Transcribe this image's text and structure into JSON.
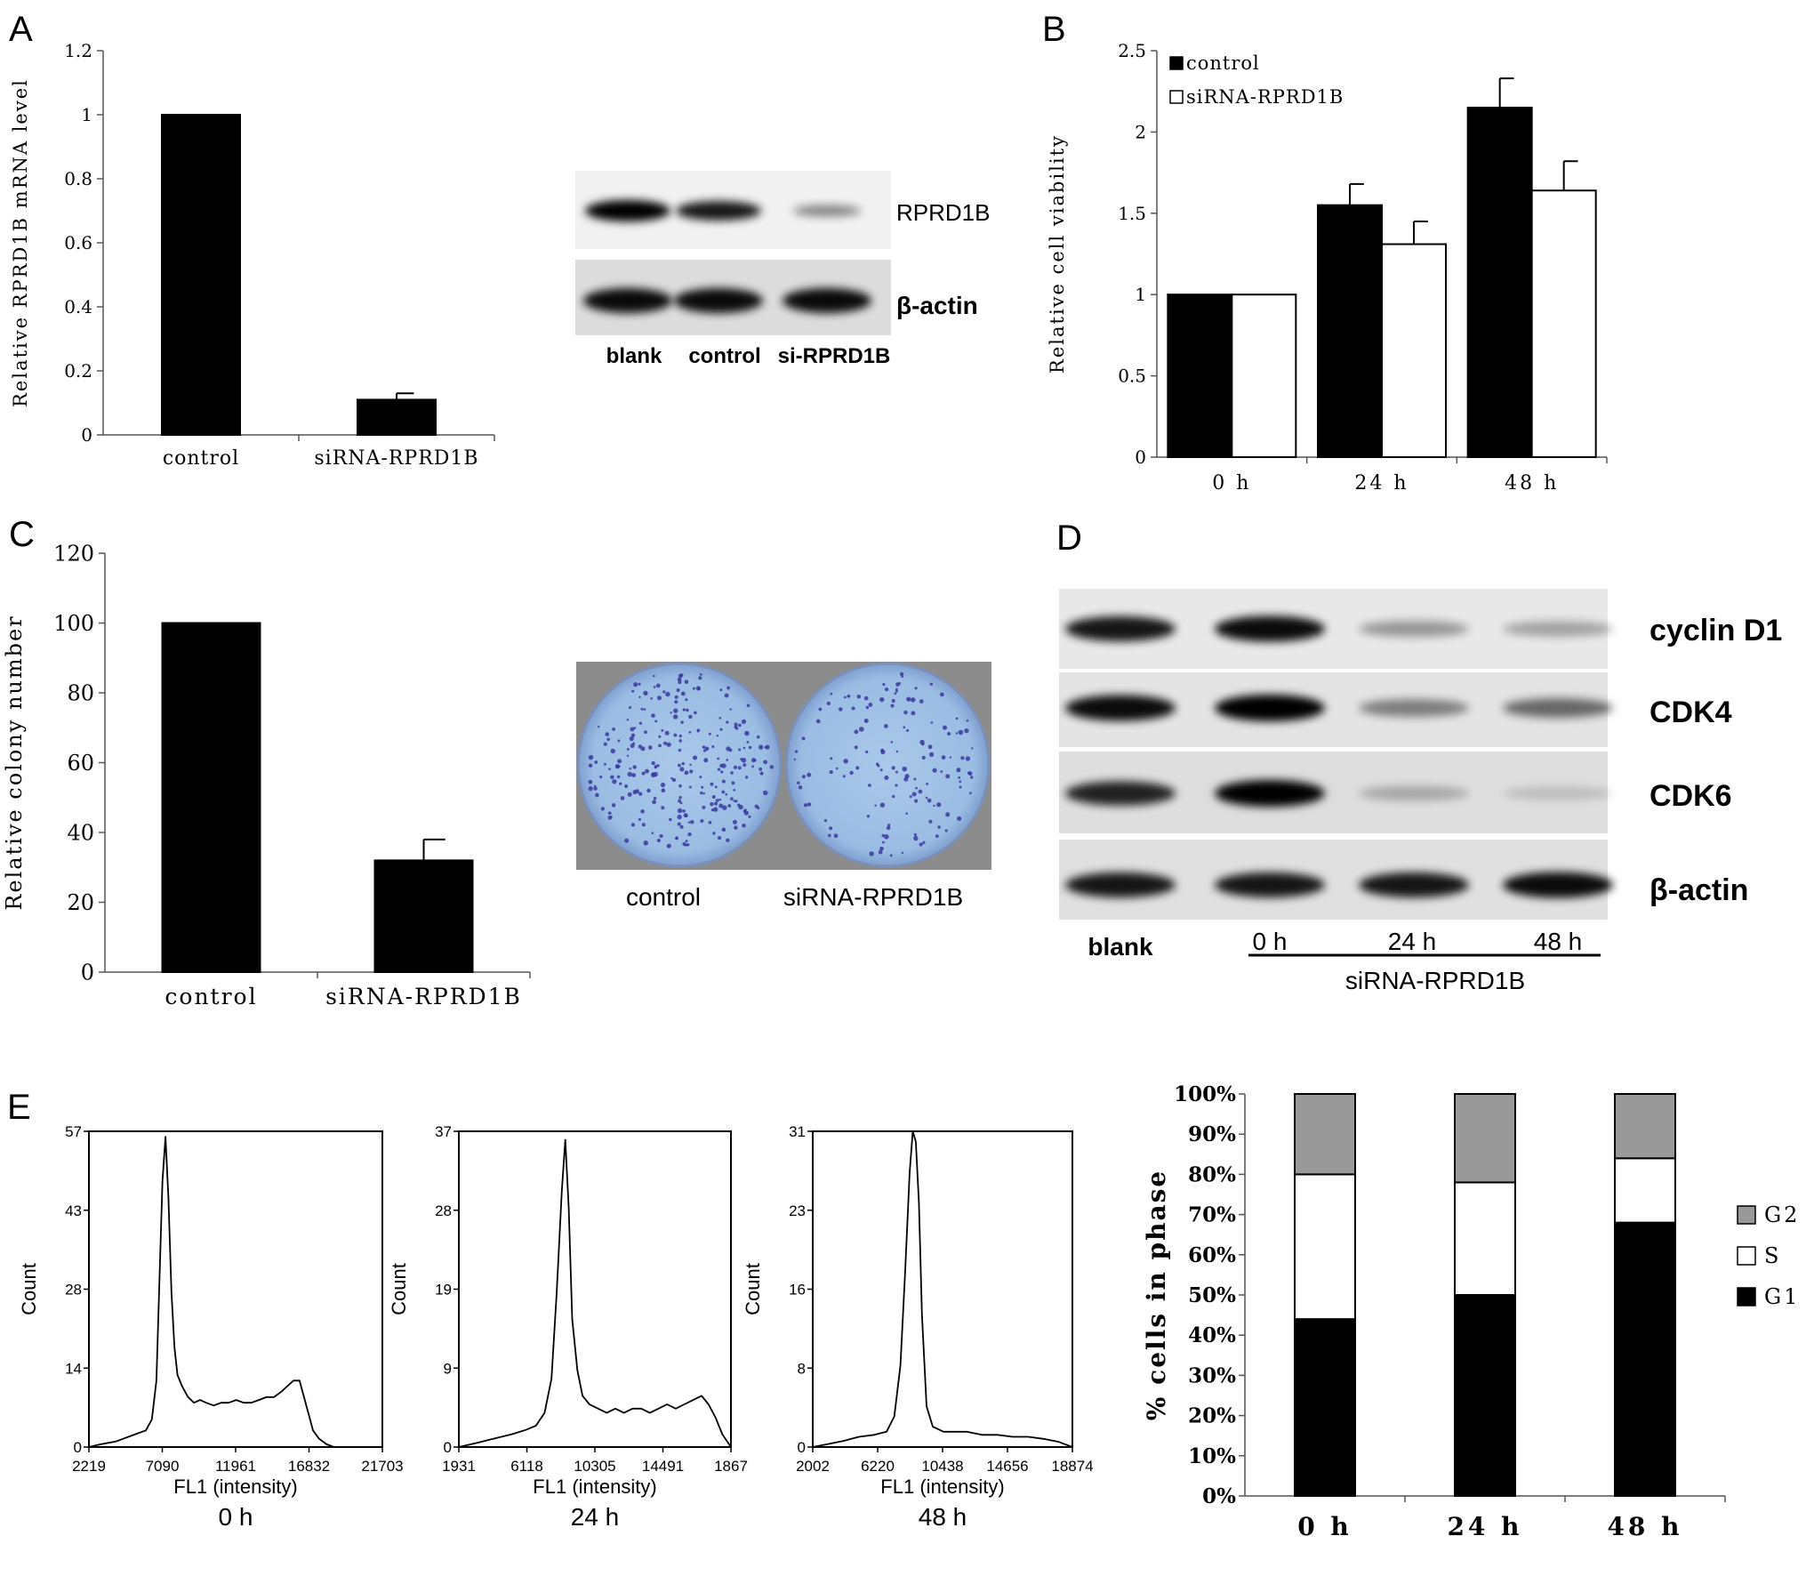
{
  "panel_letters": {
    "a": "A",
    "b": "B",
    "c": "C",
    "d": "D",
    "e": "E"
  },
  "panel_a": {
    "blot_labels": {
      "target": "RPRD1B",
      "loading": "β-actin"
    },
    "blot_lanes": [
      "blank",
      "control",
      "si-RPRD1B"
    ]
  },
  "panel_c": {
    "dish_labels": [
      "control",
      "siRNA-RPRD1B"
    ]
  },
  "panel_d": {
    "proteins": [
      "cyclin D1",
      "CDK4",
      "CDK6",
      "β-actin"
    ],
    "lanes": [
      "blank",
      "0 h",
      "24 h",
      "48 h"
    ],
    "group_label": "siRNA-RPRD1B",
    "intensities": [
      [
        0.9,
        0.95,
        0.35,
        0.3
      ],
      [
        0.95,
        1.0,
        0.45,
        0.55
      ],
      [
        0.85,
        1.0,
        0.25,
        0.15
      ],
      [
        0.9,
        0.9,
        0.9,
        0.95
      ]
    ]
  },
  "chart_data": [
    {
      "id": "A",
      "type": "bar",
      "categories": [
        "control",
        "siRNA-RPRD1B"
      ],
      "values": [
        1.0,
        0.11
      ],
      "errors": [
        0,
        0.02
      ],
      "ylabel": "Relative RPRD1B mRNA level",
      "ylim": [
        0,
        1.2
      ],
      "yticks": [
        "0",
        "0.2",
        "0.4",
        "0.6",
        "0.8",
        "1",
        "1.2"
      ]
    },
    {
      "id": "B",
      "type": "bar",
      "categories": [
        "0 h",
        "24 h",
        "48 h"
      ],
      "series": [
        {
          "name": "control",
          "values": [
            1.0,
            1.55,
            2.15
          ],
          "errors": [
            0,
            0.13,
            0.18
          ],
          "color": "#000000"
        },
        {
          "name": "siRNA-RPRD1B",
          "values": [
            1.0,
            1.31,
            1.64
          ],
          "errors": [
            0,
            0.14,
            0.18
          ],
          "color": "#ffffff"
        }
      ],
      "ylabel": "Relative cell viability",
      "ylim": [
        0,
        2.5
      ],
      "yticks": [
        "0",
        "0.5",
        "1",
        "1.5",
        "2",
        "2.5"
      ],
      "legend": "top-left"
    },
    {
      "id": "C",
      "type": "bar",
      "categories": [
        "control",
        "siRNA-RPRD1B"
      ],
      "values": [
        100,
        32
      ],
      "errors": [
        0,
        6
      ],
      "ylabel": "Relative colony number",
      "ylim": [
        0,
        120
      ],
      "yticks": [
        "0",
        "20",
        "40",
        "60",
        "80",
        "100",
        "120"
      ]
    },
    {
      "id": "E1",
      "type": "line",
      "title": "0 h",
      "xlabel": "FL1 (intensity)",
      "ylabel": "Count",
      "xticks": [
        "2219",
        "7090",
        "11961",
        "16832",
        "21703"
      ],
      "yticks": [
        "0",
        "14",
        "28",
        "43",
        "57"
      ],
      "ylim": [
        0,
        57
      ],
      "x": [
        2219,
        3000,
        4000,
        5000,
        5500,
        6000,
        6400,
        6700,
        6900,
        7100,
        7300,
        7500,
        7700,
        7900,
        8100,
        8400,
        8800,
        9200,
        9600,
        10000,
        10500,
        11000,
        11500,
        12000,
        12500,
        13000,
        13500,
        14000,
        14500,
        15000,
        15400,
        15800,
        16200,
        16500,
        16800,
        17100,
        17500,
        18000,
        18500,
        19000,
        21703
      ],
      "y": [
        0,
        0.5,
        1,
        2,
        2.5,
        3,
        5,
        12,
        30,
        48,
        56,
        45,
        28,
        18,
        13,
        11,
        9,
        8,
        8.5,
        8,
        7.5,
        8,
        8,
        8.5,
        8,
        8,
        8.5,
        9,
        9,
        10,
        11,
        12,
        12,
        9,
        6,
        3,
        1.5,
        0.5,
        0,
        0,
        0
      ]
    },
    {
      "id": "E2",
      "type": "line",
      "title": "24 h",
      "xlabel": "FL1 (intensity)",
      "ylabel": "Count",
      "xticks": [
        "1931",
        "6118",
        "10305",
        "14491",
        "1867"
      ],
      "yticks": [
        "0",
        "9",
        "19",
        "28",
        "37"
      ],
      "ylim": [
        0,
        37
      ],
      "x": [
        1931,
        3000,
        4000,
        5000,
        5800,
        6400,
        6900,
        7300,
        7600,
        7900,
        8100,
        8300,
        8500,
        8800,
        9100,
        9500,
        10000,
        10500,
        11000,
        11500,
        12000,
        12500,
        13000,
        13500,
        14000,
        14500,
        15000,
        15500,
        16000,
        16400,
        16800,
        17200,
        17700
      ],
      "y": [
        0,
        0.5,
        1,
        1.5,
        2,
        2.5,
        4,
        8,
        18,
        30,
        36,
        28,
        15,
        9,
        6,
        5,
        4.5,
        4,
        4.5,
        4,
        4.5,
        4.5,
        4,
        4.5,
        5,
        4.5,
        5,
        5.5,
        6,
        5,
        3.5,
        1.5,
        0
      ]
    },
    {
      "id": "E3",
      "type": "line",
      "title": "48 h",
      "xlabel": "FL1 (intensity)",
      "ylabel": "Count",
      "xticks": [
        "2002",
        "6220",
        "10438",
        "14656",
        "18874"
      ],
      "yticks": [
        "0",
        "8",
        "16",
        "23",
        "31"
      ],
      "ylim": [
        0,
        31
      ],
      "x": [
        2002,
        3000,
        4000,
        5000,
        6000,
        6800,
        7300,
        7700,
        8000,
        8300,
        8500,
        8700,
        8900,
        9100,
        9400,
        9800,
        10500,
        11000,
        12000,
        13000,
        14000,
        15000,
        16000,
        17000,
        18000,
        18874
      ],
      "y": [
        0,
        0.3,
        0.6,
        1,
        1.2,
        1.5,
        3,
        8,
        17,
        27,
        31,
        30,
        24,
        13,
        4,
        2,
        1.5,
        1.5,
        1.5,
        1.2,
        1.2,
        1,
        1,
        0.8,
        0.5,
        0
      ]
    },
    {
      "id": "E4",
      "type": "bar",
      "stacked": true,
      "categories": [
        "0 h",
        "24 h",
        "48 h"
      ],
      "series": [
        {
          "name": "G1",
          "values": [
            44,
            50,
            68
          ],
          "color": "#000000"
        },
        {
          "name": "S",
          "values": [
            36,
            28,
            16
          ],
          "color": "#ffffff"
        },
        {
          "name": "G2",
          "values": [
            20,
            22,
            16
          ],
          "color": "#999999"
        }
      ],
      "ylabel": "% cells in phase",
      "yticks": [
        "0%",
        "10%",
        "20%",
        "30%",
        "40%",
        "50%",
        "60%",
        "70%",
        "80%",
        "90%",
        "100%"
      ],
      "ylim": [
        0,
        100
      ],
      "legend": "right"
    }
  ]
}
